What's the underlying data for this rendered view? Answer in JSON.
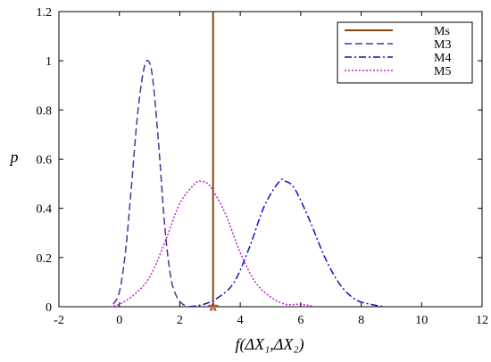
{
  "chart_data": {
    "type": "line",
    "xlabel": "f(ΔX₁,ΔX₂)",
    "ylabel": "p",
    "xlim": [
      -2,
      12
    ],
    "ylim": [
      0,
      1.2
    ],
    "xticks": [
      -2,
      0,
      2,
      4,
      6,
      8,
      10,
      12
    ],
    "yticks": [
      0,
      0.2,
      0.4,
      0.6,
      0.8,
      1,
      1.2
    ],
    "ytick_labels": [
      "0",
      "0.2",
      "0.4",
      "0.6",
      "0.8",
      "1",
      "1.2"
    ],
    "grid": false,
    "legend": "top-right",
    "series": [
      {
        "name": "Ms",
        "style": "solid",
        "color": "#8B4513",
        "x": [
          3.1,
          3.1
        ],
        "y": [
          0,
          1.2
        ]
      },
      {
        "name": "M3",
        "style": "dashed",
        "color": "#5a2d9c",
        "x": [
          -0.2,
          0,
          0.2,
          0.4,
          0.6,
          0.8,
          0.95,
          1.1,
          1.3,
          1.5,
          1.7,
          1.9,
          2.1,
          2.3
        ],
        "y": [
          0.01,
          0.06,
          0.22,
          0.49,
          0.78,
          0.96,
          1.0,
          0.93,
          0.66,
          0.33,
          0.12,
          0.04,
          0.01,
          0.0
        ]
      },
      {
        "name": "M4",
        "style": "dash-dot",
        "color": "#1010c0",
        "x": [
          2.3,
          2.8,
          3.3,
          3.8,
          4.3,
          4.8,
          5.3,
          5.5,
          5.8,
          6.3,
          6.8,
          7.3,
          7.8,
          8.3,
          8.8
        ],
        "y": [
          0.0,
          0.01,
          0.04,
          0.1,
          0.24,
          0.41,
          0.51,
          0.51,
          0.48,
          0.35,
          0.2,
          0.09,
          0.03,
          0.01,
          0.0
        ]
      },
      {
        "name": "M5",
        "style": "dotted",
        "color": "#c020d0",
        "x": [
          -0.3,
          0,
          0.5,
          1,
          1.5,
          2,
          2.5,
          2.7,
          3,
          3.5,
          4,
          4.5,
          5,
          5.5,
          6,
          6.5
        ],
        "y": [
          0.0,
          0.01,
          0.05,
          0.12,
          0.26,
          0.42,
          0.5,
          0.51,
          0.49,
          0.38,
          0.22,
          0.1,
          0.04,
          0.01,
          0.01,
          0.0
        ]
      }
    ],
    "marker": {
      "label": "star",
      "x": 3.1,
      "y": 0,
      "color": "#c0392b"
    }
  }
}
